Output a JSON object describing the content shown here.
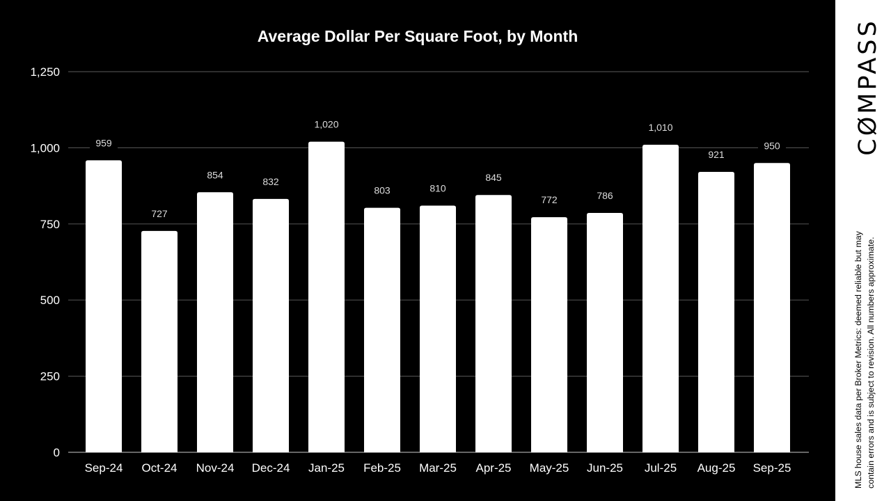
{
  "chart_data": {
    "type": "bar",
    "title": "Average Dollar Per Square Foot, by Month",
    "xlabel": "",
    "ylabel": "",
    "categories": [
      "Sep-24",
      "Oct-24",
      "Nov-24",
      "Dec-24",
      "Jan-25",
      "Feb-25",
      "Mar-25",
      "Apr-25",
      "May-25",
      "Jun-25",
      "Jul-25",
      "Aug-25",
      "Sep-25"
    ],
    "values": [
      959,
      727,
      854,
      832,
      1020,
      803,
      810,
      845,
      772,
      786,
      1010,
      921,
      950
    ],
    "data_labels": [
      "959",
      "727",
      "854",
      "832",
      "1,020",
      "803",
      "810",
      "845",
      "772",
      "786",
      "1,010",
      "921",
      "950"
    ],
    "ylim": [
      0,
      1250
    ],
    "yticks": [
      0,
      250,
      500,
      750,
      1000,
      1250
    ],
    "ytick_labels": [
      "0",
      "250",
      "500",
      "750",
      "1,000",
      "1,250"
    ],
    "grid": true,
    "bar_color": "#ffffff",
    "background": "#000000"
  },
  "brand": {
    "logo": "COMPASS",
    "disclaimer_line1": "MLS house sales data per Broker Metrics: deemed reliable but may",
    "disclaimer_line2": "contain errors and is subject to revision. All numbers approximate."
  }
}
